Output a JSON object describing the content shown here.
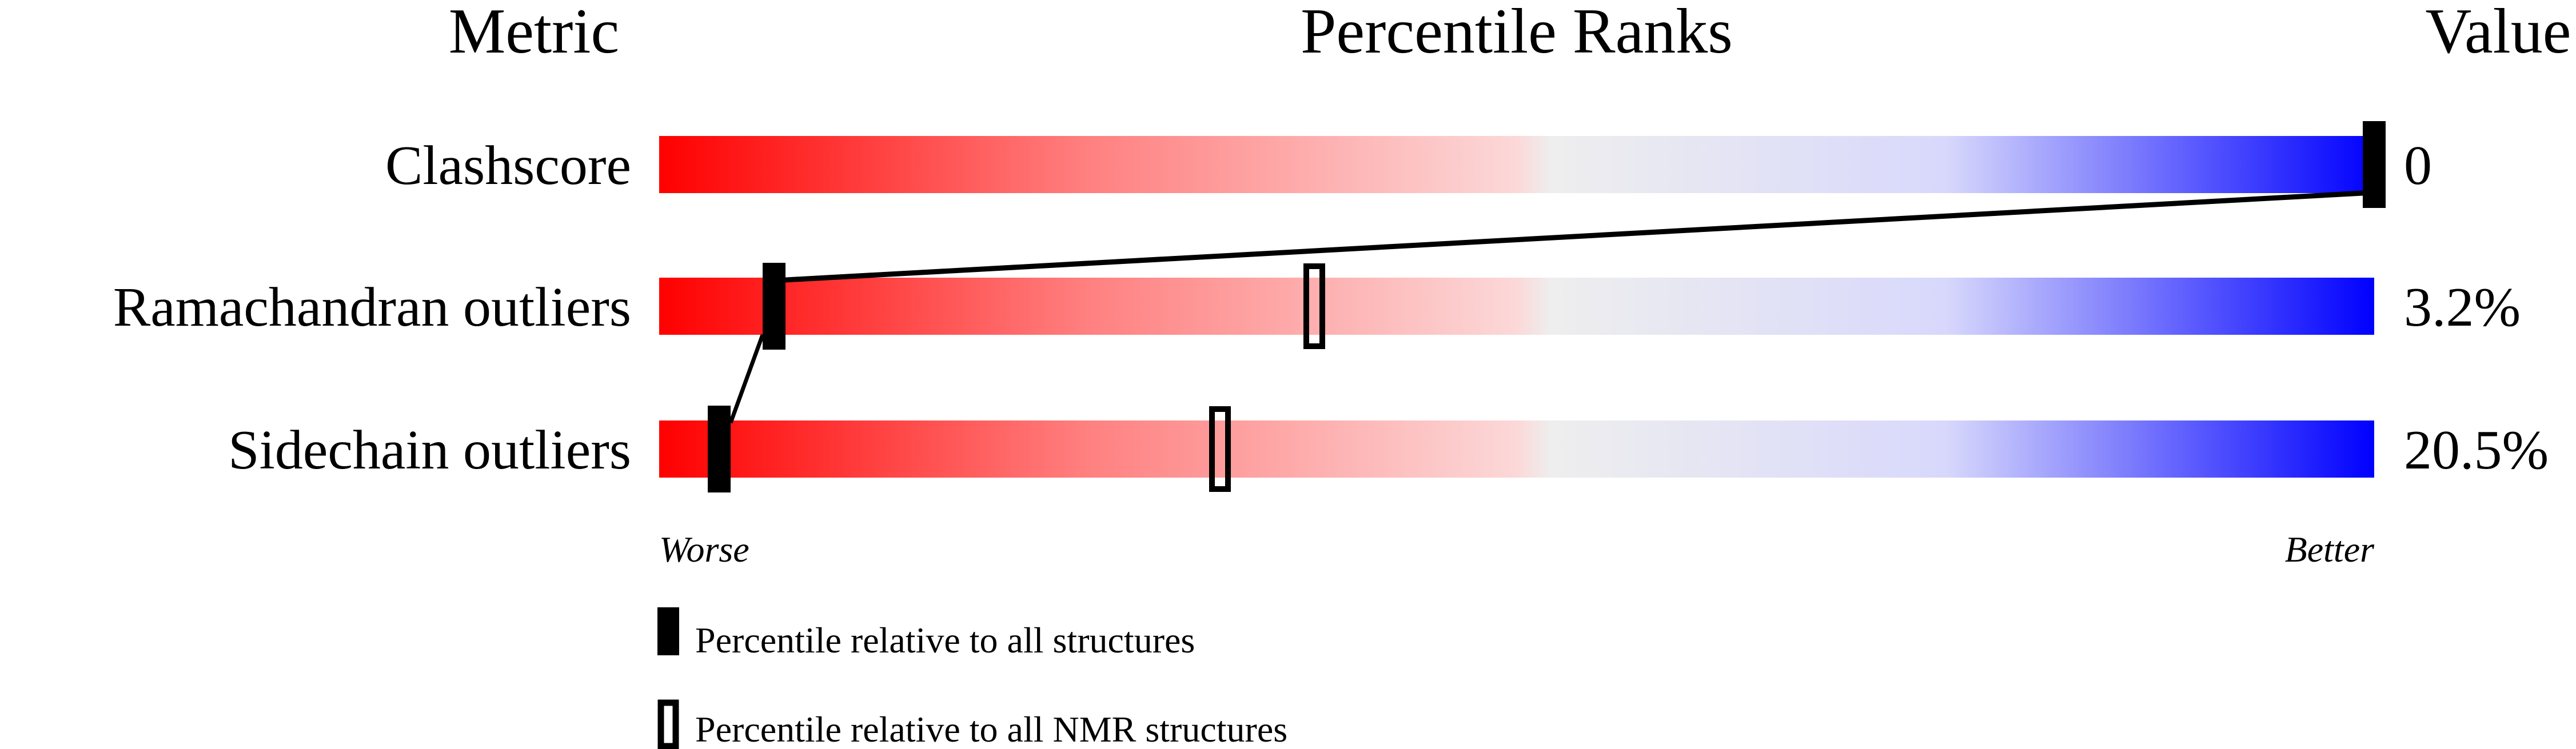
{
  "chart_data": {
    "type": "bar",
    "headers": {
      "metric": "Metric",
      "percentile": "Percentile Ranks",
      "value": "Value"
    },
    "xlim": [
      0,
      100
    ],
    "x_direction": {
      "low": "Worse",
      "high": "Better"
    },
    "gradient_colors": {
      "worse": "#ff0000",
      "middle": "#eeeeee",
      "better": "#0000ff"
    },
    "metrics": [
      {
        "name": "Clashscore",
        "value": "0",
        "percentile_all": 100,
        "percentile_nmr": null
      },
      {
        "name": "Ramachandran outliers",
        "value": "3.2%",
        "percentile_all": 6.7,
        "percentile_nmr": 38.2
      },
      {
        "name": "Sidechain outliers",
        "value": "20.5%",
        "percentile_all": 3.5,
        "percentile_nmr": 32.7
      }
    ],
    "legend": [
      {
        "marker": "filled",
        "label": "Percentile relative to all structures"
      },
      {
        "marker": "open",
        "label": "Percentile relative to all NMR structures"
      }
    ]
  }
}
